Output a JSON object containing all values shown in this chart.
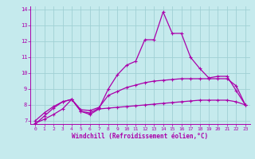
{
  "title": "",
  "xlabel": "Windchill (Refroidissement éolien,°C)",
  "xlim": [
    -0.5,
    23.5
  ],
  "ylim": [
    6.8,
    14.2
  ],
  "yticks": [
    7,
    8,
    9,
    10,
    11,
    12,
    13,
    14
  ],
  "xticks": [
    0,
    1,
    2,
    3,
    4,
    5,
    6,
    7,
    8,
    9,
    10,
    11,
    12,
    13,
    14,
    15,
    16,
    17,
    18,
    19,
    20,
    21,
    22,
    23
  ],
  "background_color": "#c5eaed",
  "line_color": "#aa00aa",
  "grid_color": "#a0d0d5",
  "line1_x": [
    0,
    1,
    2,
    3,
    4,
    5,
    6,
    7,
    8,
    9,
    10,
    11,
    12,
    13,
    14,
    15,
    16,
    17,
    18,
    19,
    20,
    21,
    22,
    23
  ],
  "line1_y": [
    6.8,
    7.3,
    7.8,
    8.2,
    8.35,
    7.6,
    7.5,
    7.8,
    9.0,
    9.9,
    10.5,
    10.75,
    12.1,
    12.1,
    13.85,
    12.5,
    12.5,
    11.0,
    10.3,
    9.7,
    9.8,
    9.8,
    8.9,
    8.0
  ],
  "line2_x": [
    0,
    1,
    2,
    3,
    4,
    5,
    6,
    7,
    8,
    9,
    10,
    11,
    12,
    13,
    14,
    15,
    16,
    17,
    18,
    19,
    20,
    21,
    22,
    23
  ],
  "line2_y": [
    7.0,
    7.5,
    7.9,
    8.2,
    8.35,
    7.7,
    7.65,
    7.85,
    8.6,
    8.85,
    9.1,
    9.25,
    9.4,
    9.5,
    9.55,
    9.6,
    9.65,
    9.65,
    9.65,
    9.65,
    9.65,
    9.65,
    9.2,
    8.0
  ],
  "line3_x": [
    0,
    1,
    2,
    3,
    4,
    5,
    6,
    7,
    8,
    9,
    10,
    11,
    12,
    13,
    14,
    15,
    16,
    17,
    18,
    19,
    20,
    21,
    22,
    23
  ],
  "line3_y": [
    6.85,
    7.1,
    7.4,
    7.75,
    8.35,
    7.6,
    7.4,
    7.75,
    7.8,
    7.85,
    7.9,
    7.95,
    8.0,
    8.05,
    8.1,
    8.15,
    8.2,
    8.25,
    8.3,
    8.3,
    8.3,
    8.3,
    8.2,
    8.0
  ]
}
